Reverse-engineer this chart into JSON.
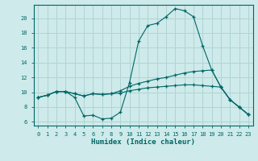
{
  "xlabel": "Humidex (Indice chaleur)",
  "bg_color": "#ceeaea",
  "grid_color": "#b0d4d4",
  "line_color": "#006666",
  "spine_color": "#006666",
  "xlim": [
    -0.5,
    23.5
  ],
  "ylim": [
    5.5,
    21.8
  ],
  "yticks": [
    6,
    8,
    10,
    12,
    14,
    16,
    18,
    20
  ],
  "xticks": [
    0,
    1,
    2,
    3,
    4,
    5,
    6,
    7,
    8,
    9,
    10,
    11,
    12,
    13,
    14,
    15,
    16,
    17,
    18,
    19,
    20,
    21,
    22,
    23
  ],
  "x": [
    0,
    1,
    2,
    3,
    4,
    5,
    6,
    7,
    8,
    9,
    10,
    11,
    12,
    13,
    14,
    15,
    16,
    17,
    18,
    19,
    20,
    21,
    22,
    23
  ],
  "y_max": [
    9.3,
    9.6,
    10.1,
    10.1,
    9.3,
    6.8,
    6.9,
    6.4,
    6.5,
    7.3,
    11.3,
    16.9,
    19.0,
    19.3,
    20.2,
    21.3,
    21.0,
    20.2,
    16.3,
    13.0,
    10.7,
    9.0,
    8.0,
    7.0
  ],
  "y_mid": [
    9.3,
    9.6,
    10.1,
    10.1,
    9.8,
    9.5,
    9.8,
    9.7,
    9.8,
    10.2,
    10.8,
    11.2,
    11.5,
    11.8,
    12.0,
    12.3,
    12.6,
    12.8,
    12.9,
    13.0,
    10.7,
    9.0,
    8.0,
    7.0
  ],
  "y_min": [
    9.3,
    9.6,
    10.1,
    10.1,
    9.8,
    9.5,
    9.8,
    9.7,
    9.8,
    9.9,
    10.2,
    10.4,
    10.6,
    10.7,
    10.8,
    10.9,
    11.0,
    11.0,
    10.9,
    10.8,
    10.7,
    9.0,
    8.0,
    7.0
  ]
}
